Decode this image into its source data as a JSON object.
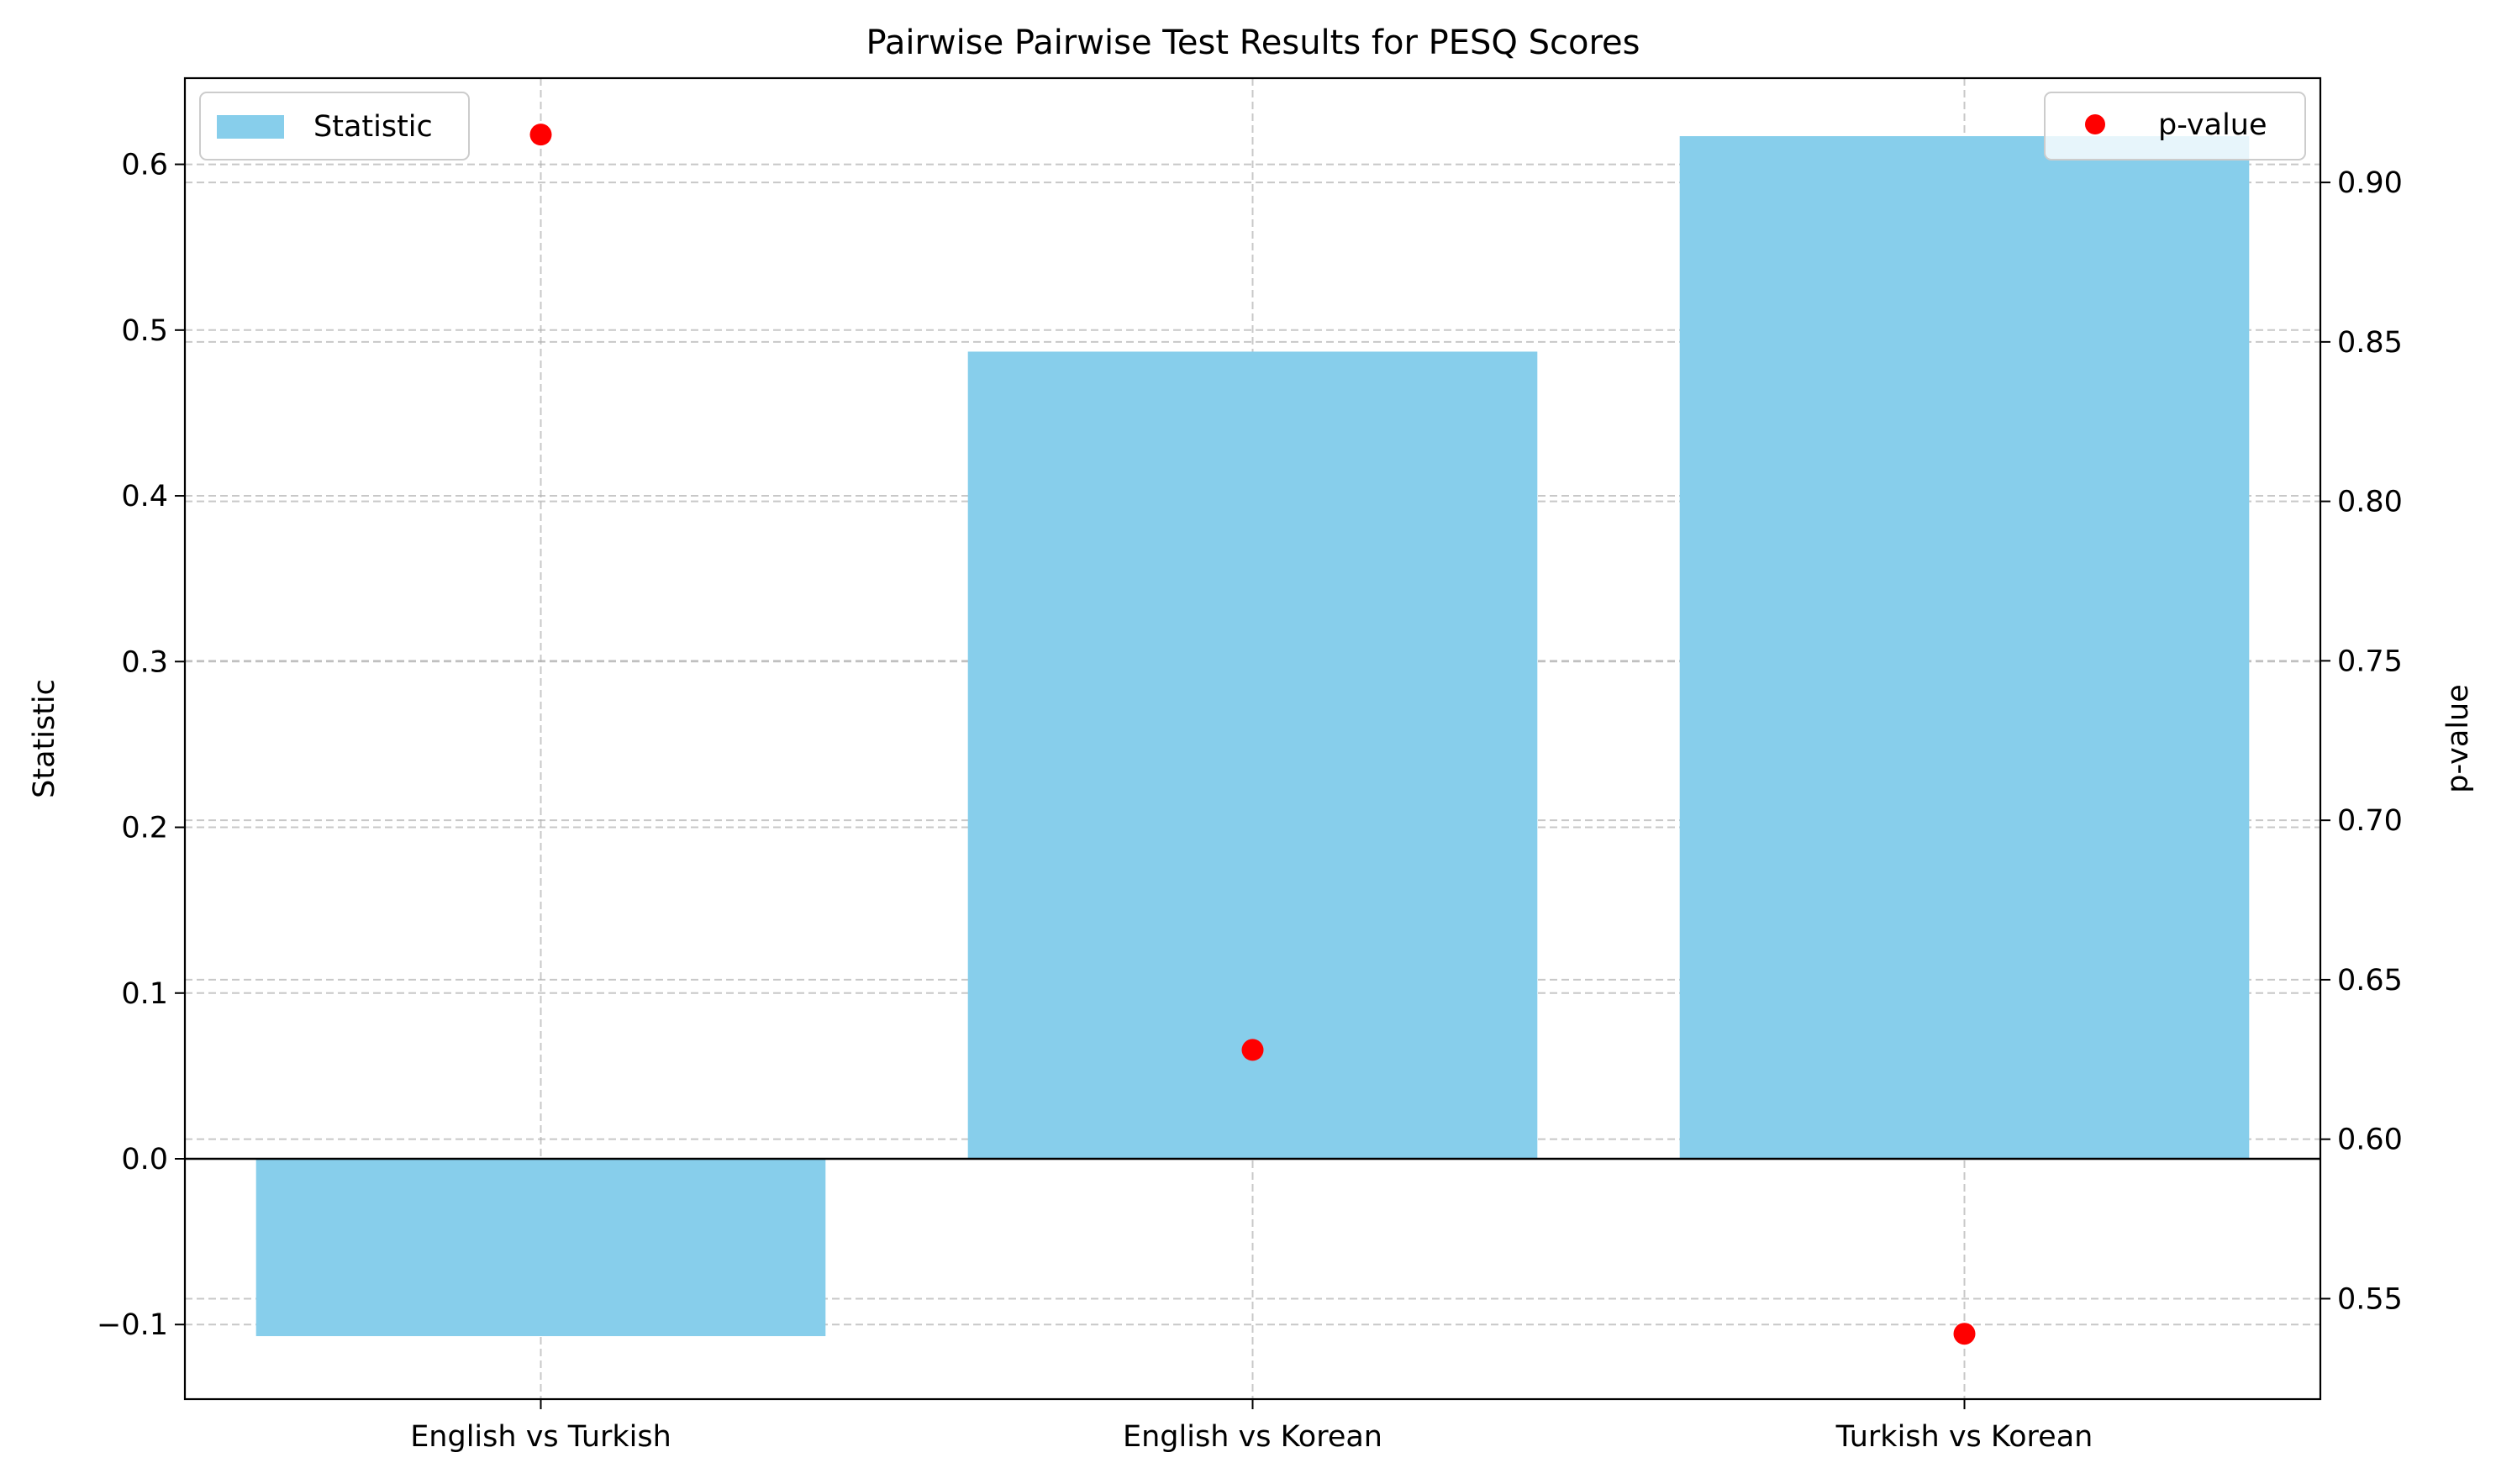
{
  "chart_data": {
    "type": "bar",
    "title": "Pairwise Pairwise Test Results for PESQ Scores",
    "categories": [
      "English vs Turkish",
      "English vs Korean",
      "Turkish vs Korean"
    ],
    "series": [
      {
        "name": "Statistic",
        "kind": "bar",
        "axis": "left",
        "color": "#87CEEB",
        "values": [
          -0.107,
          0.487,
          0.617
        ]
      },
      {
        "name": "p-value",
        "kind": "scatter",
        "axis": "right",
        "color": "#ff0000",
        "values": [
          0.915,
          0.628,
          0.539
        ]
      }
    ],
    "ylabel": "Statistic",
    "y2label": "p-value",
    "ylim": [
      -0.145,
      0.652
    ],
    "y2lim": [
      0.5185,
      0.9327
    ],
    "yticks": [
      "−0.1",
      "0.0",
      "0.1",
      "0.2",
      "0.3",
      "0.4",
      "0.5",
      "0.6"
    ],
    "ytick_values": [
      -0.1,
      0.0,
      0.1,
      0.2,
      0.3,
      0.4,
      0.5,
      0.6
    ],
    "y2ticks": [
      "0.55",
      "0.60",
      "0.65",
      "0.70",
      "0.75",
      "0.80",
      "0.85",
      "0.90"
    ],
    "y2tick_values": [
      0.55,
      0.6,
      0.65,
      0.7,
      0.75,
      0.8,
      0.85,
      0.9
    ],
    "grid": true,
    "legend_left": {
      "placement": "upper-left",
      "label": "Statistic"
    },
    "legend_right": {
      "placement": "upper-right",
      "label": "p-value"
    },
    "colors": {
      "bar": "#87CEEB",
      "marker": "#ff0000",
      "grid": "#b0b0b0",
      "zero_line": "#000000"
    }
  }
}
